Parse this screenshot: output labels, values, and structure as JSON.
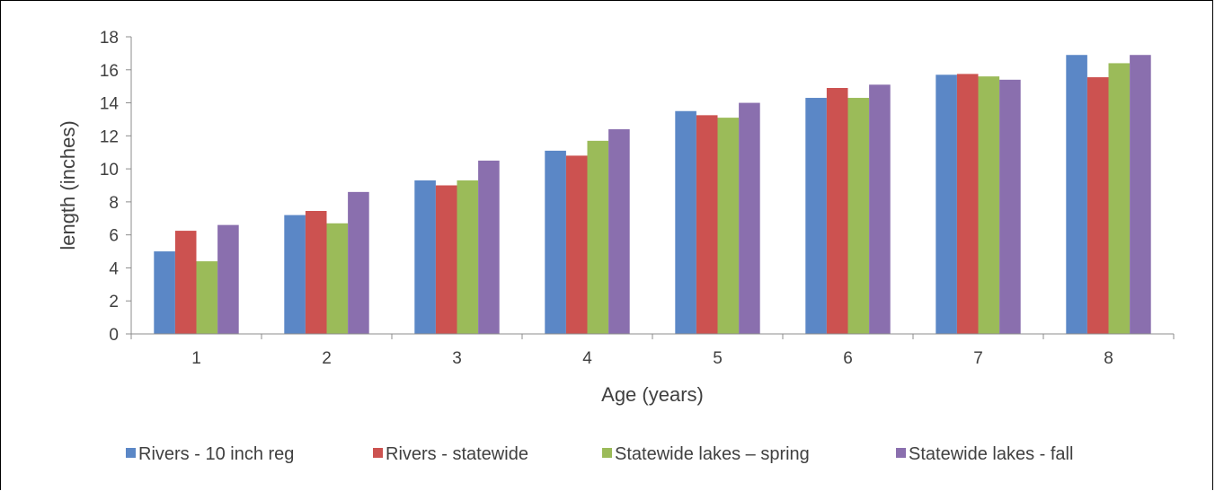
{
  "chart_data": {
    "type": "bar",
    "categories": [
      "1",
      "2",
      "3",
      "4",
      "5",
      "6",
      "7",
      "8"
    ],
    "series": [
      {
        "name": "Rivers - 10 inch reg",
        "color": "#5B87C6",
        "values": [
          5.0,
          7.2,
          9.3,
          11.1,
          13.5,
          14.3,
          15.7,
          16.9
        ]
      },
      {
        "name": "Rivers - statewide",
        "color": "#CC5250",
        "values": [
          6.25,
          7.45,
          9.0,
          10.8,
          13.25,
          14.9,
          15.75,
          15.55
        ]
      },
      {
        "name": "Statewide lakes – spring",
        "color": "#9BBB59",
        "values": [
          4.4,
          6.7,
          9.3,
          11.7,
          13.1,
          14.3,
          15.6,
          16.4
        ]
      },
      {
        "name": "Statewide lakes - fall",
        "color": "#8A6FAE",
        "values": [
          6.6,
          8.6,
          10.5,
          12.4,
          14.0,
          15.1,
          15.4,
          16.9
        ]
      }
    ],
    "yticks": [
      "0",
      "2",
      "4",
      "6",
      "8",
      "10",
      "12",
      "14",
      "16",
      "18"
    ],
    "ylim": [
      0,
      18
    ],
    "xlabel": "Age (years)",
    "ylabel": "length (inches)",
    "legend_position": "bottom",
    "grid": false
  }
}
